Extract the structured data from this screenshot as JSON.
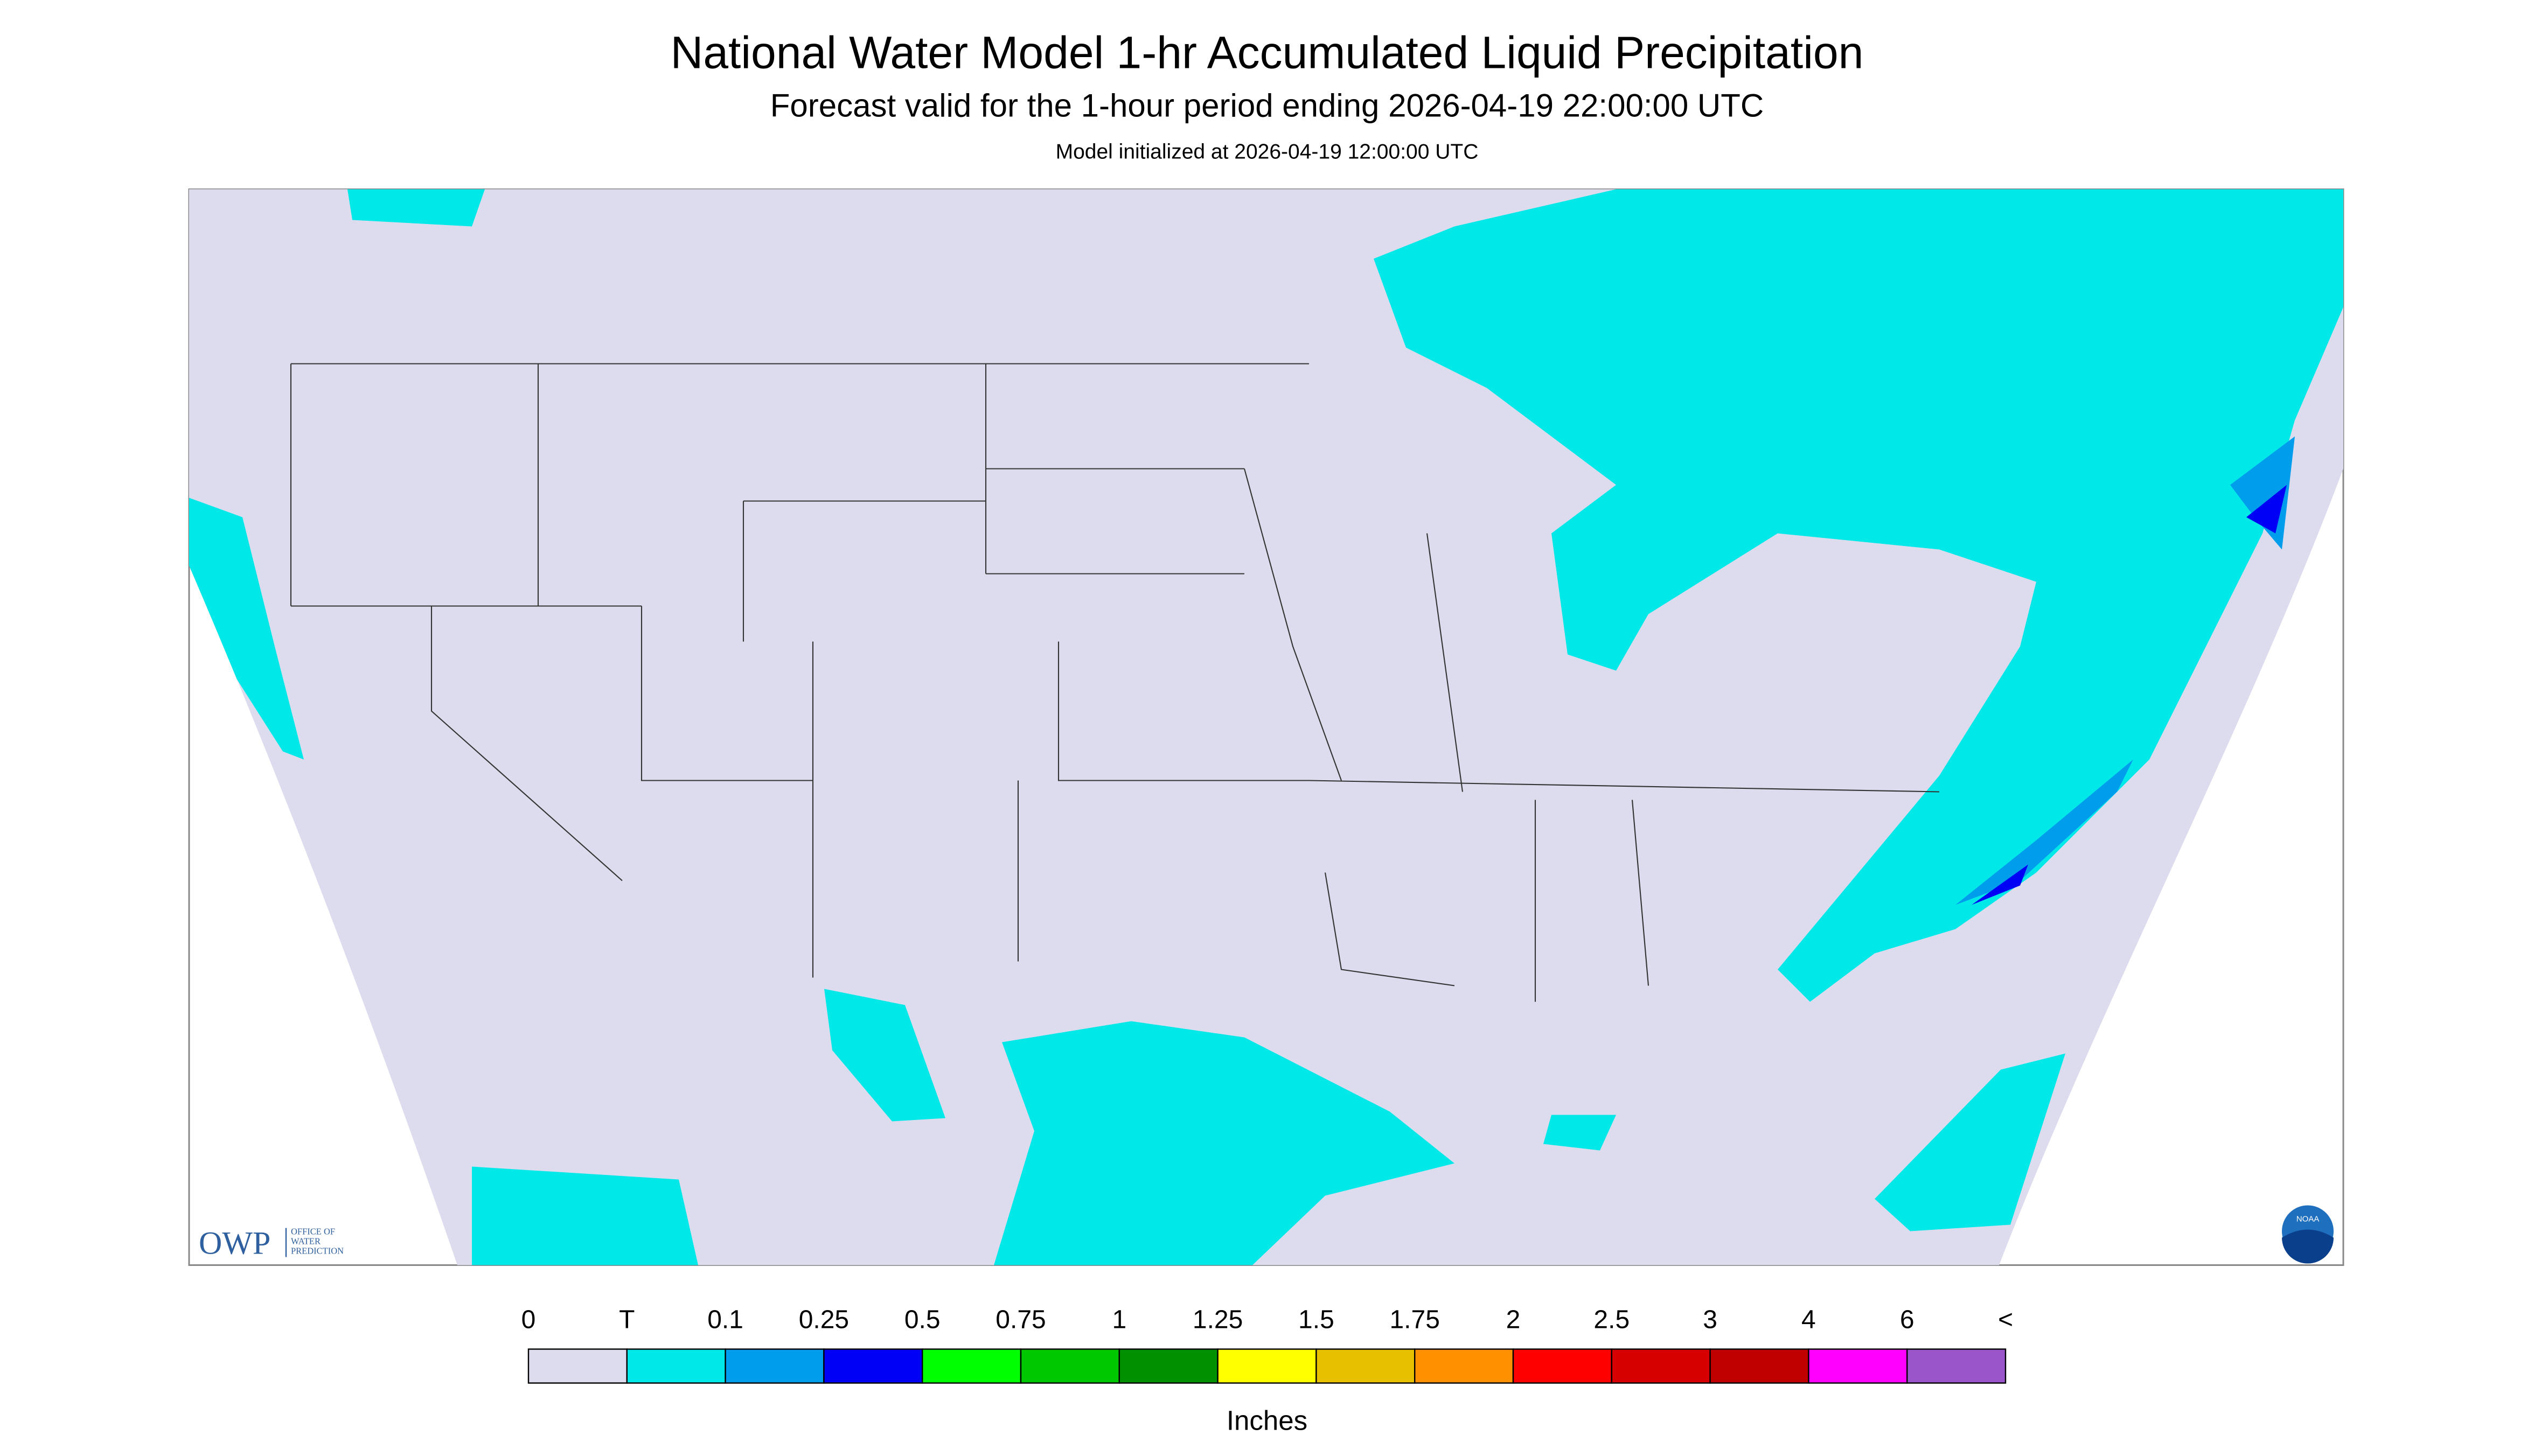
{
  "header": {
    "title": "National Water Model 1-hr Accumulated Liquid Precipitation",
    "subtitle": "Forecast valid for the 1-hour period ending 2026-04-19 22:00:00 UTC",
    "note": "Model initialized at 2026-04-19 12:00:00 UTC"
  },
  "logo": {
    "acronym": "OWP",
    "lines": [
      "OFFICE OF",
      "WATER",
      "PREDICTION"
    ],
    "badge": "NOAA"
  },
  "legend": {
    "labels": [
      "0",
      "T",
      "0.1",
      "0.25",
      "0.5",
      "0.75",
      "1",
      "1.25",
      "1.5",
      "1.75",
      "2",
      "2.5",
      "3",
      "4",
      "6",
      "<"
    ],
    "colors": [
      "#dcdcee",
      "#00e8e8",
      "#009ded",
      "#0000f6",
      "#00ff00",
      "#00c800",
      "#009000",
      "#ffff00",
      "#e7c000",
      "#ff9000",
      "#ff0000",
      "#d60000",
      "#c00000",
      "#ff00ff",
      "#9955c9"
    ],
    "unit": "Inches"
  }
}
